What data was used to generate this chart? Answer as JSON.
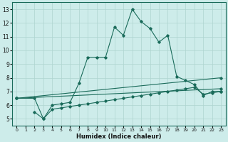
{
  "xlabel": "Humidex (Indice chaleur)",
  "ylabel": "",
  "bg_color": "#cdecea",
  "grid_color": "#aed4d0",
  "line_color": "#1a6b5a",
  "xlim": [
    -0.5,
    23.5
  ],
  "ylim": [
    4.5,
    13.5
  ],
  "xticks": [
    0,
    1,
    2,
    3,
    4,
    5,
    6,
    7,
    8,
    9,
    10,
    11,
    12,
    13,
    14,
    15,
    16,
    17,
    18,
    19,
    20,
    21,
    22,
    23
  ],
  "yticks": [
    5,
    6,
    7,
    8,
    9,
    10,
    11,
    12,
    13
  ],
  "line1_x": [
    0,
    2,
    3,
    4,
    5,
    6,
    7,
    8,
    9,
    10,
    11,
    12,
    13,
    14,
    15,
    16,
    17,
    18,
    19,
    20,
    21,
    22,
    23
  ],
  "line1_y": [
    6.5,
    6.5,
    5.0,
    6.0,
    6.1,
    6.2,
    7.6,
    9.5,
    9.5,
    9.5,
    11.7,
    11.1,
    13.0,
    12.1,
    11.6,
    10.6,
    11.1,
    8.1,
    7.8,
    7.5,
    6.7,
    7.0,
    7.0
  ],
  "line2_x": [
    0,
    23
  ],
  "line2_y": [
    6.5,
    8.0
  ],
  "line3_x": [
    0,
    23
  ],
  "line3_y": [
    6.5,
    7.2
  ],
  "line4_x": [
    2,
    3,
    4,
    5,
    6,
    7,
    8,
    9,
    10,
    11,
    12,
    13,
    14,
    15,
    16,
    17,
    18,
    19,
    20,
    21,
    22,
    23
  ],
  "line4_y": [
    5.5,
    5.0,
    5.7,
    5.8,
    5.9,
    6.0,
    6.1,
    6.2,
    6.3,
    6.4,
    6.5,
    6.6,
    6.7,
    6.8,
    6.9,
    7.0,
    7.1,
    7.2,
    7.3,
    6.8,
    6.9,
    7.0
  ],
  "figsize": [
    3.2,
    2.0
  ],
  "dpi": 100
}
